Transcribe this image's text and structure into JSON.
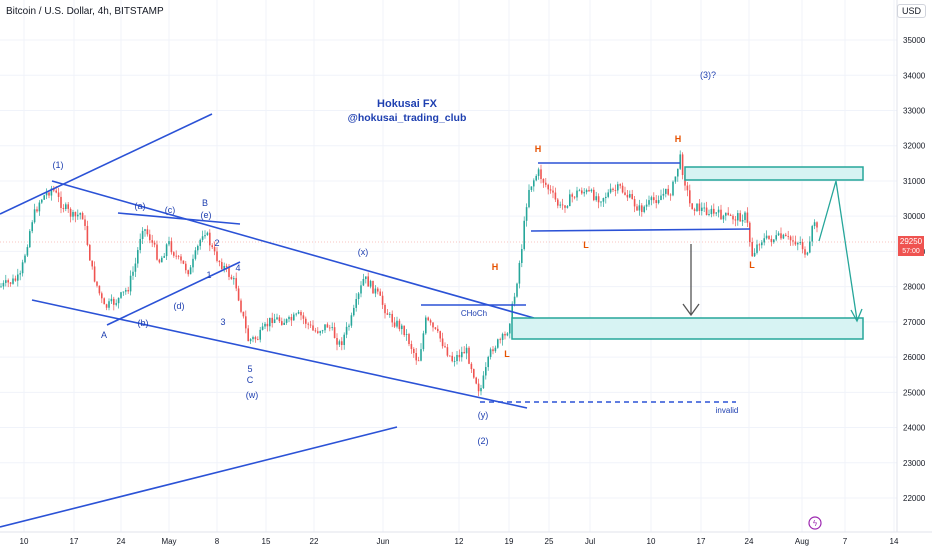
{
  "header": {
    "symbol_line": "Bitcoin / U.S. Dollar, 4h, BITSTAMP",
    "currency": "USD"
  },
  "chart_data": {
    "type": "candlestick",
    "ylim": [
      21200,
      35500
    ],
    "yticks": [
      22000,
      23000,
      24000,
      25000,
      26000,
      27000,
      28000,
      29000,
      30000,
      31000,
      32000,
      33000,
      34000,
      35000
    ],
    "xtick_labels": [
      "10",
      "17",
      "24",
      "May",
      "8",
      "15",
      "22",
      "Jun",
      "12",
      "19",
      "25",
      "Jul",
      "10",
      "17",
      "24",
      "Aug",
      "7",
      "14"
    ],
    "price_label": {
      "value": "29250",
      "timer": "57:00"
    },
    "title": "Hokusai FX",
    "subtitle": "@hokusai_trading_club",
    "wave_labels": [
      "(1)",
      "(a)",
      "(c)",
      "B",
      "(e)",
      "2",
      "4",
      "1",
      "3",
      "5",
      "C",
      "(w)",
      "A",
      "(b)",
      "(d)",
      "(x)",
      "(y)",
      "(2)",
      "(3)?"
    ],
    "swing_labels": [
      "H",
      "H",
      "H",
      "L",
      "L",
      "L"
    ],
    "annotations": [
      "CHoCh",
      "invalid"
    ]
  }
}
